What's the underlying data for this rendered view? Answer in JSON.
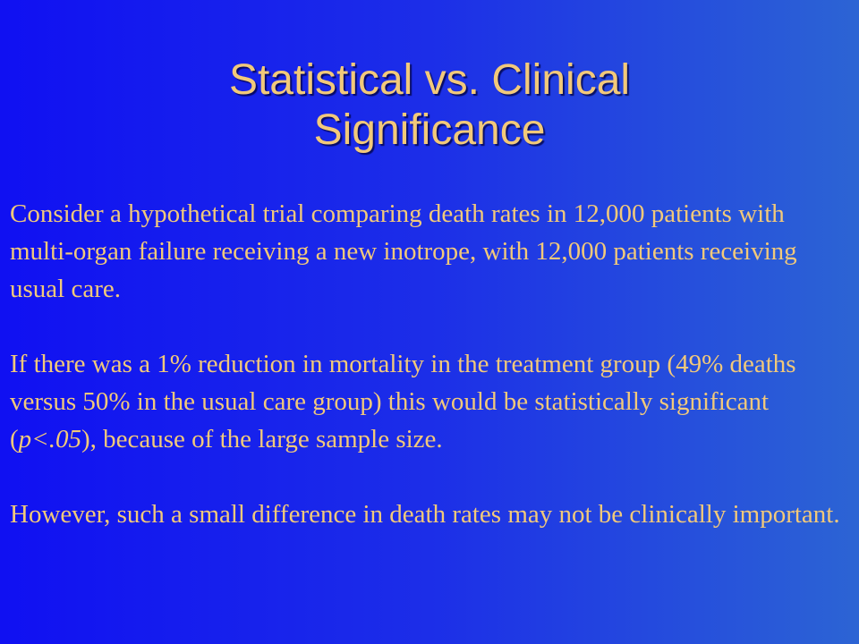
{
  "slide": {
    "title_line1": "Statistical vs. Clinical",
    "title_line2": "Significance",
    "paragraph1": "Consider a hypothetical trial comparing death rates in 12,000 patients with multi-organ failure receiving a new inotrope, with 12,000 patients receiving usual care.",
    "paragraph2_before": "If there was a 1% reduction in mortality in the treatment group (49% deaths versus 50% in the usual care group) this would be statistically significant (",
    "paragraph2_italic": "p<.05",
    "paragraph2_after": "), because of the large sample size.",
    "paragraph3": "However, such a small difference in death rates may not be clinically important."
  },
  "colors": {
    "text": "#f2c97a",
    "background_left": "#1010f2",
    "background_right": "#2c64d4"
  }
}
